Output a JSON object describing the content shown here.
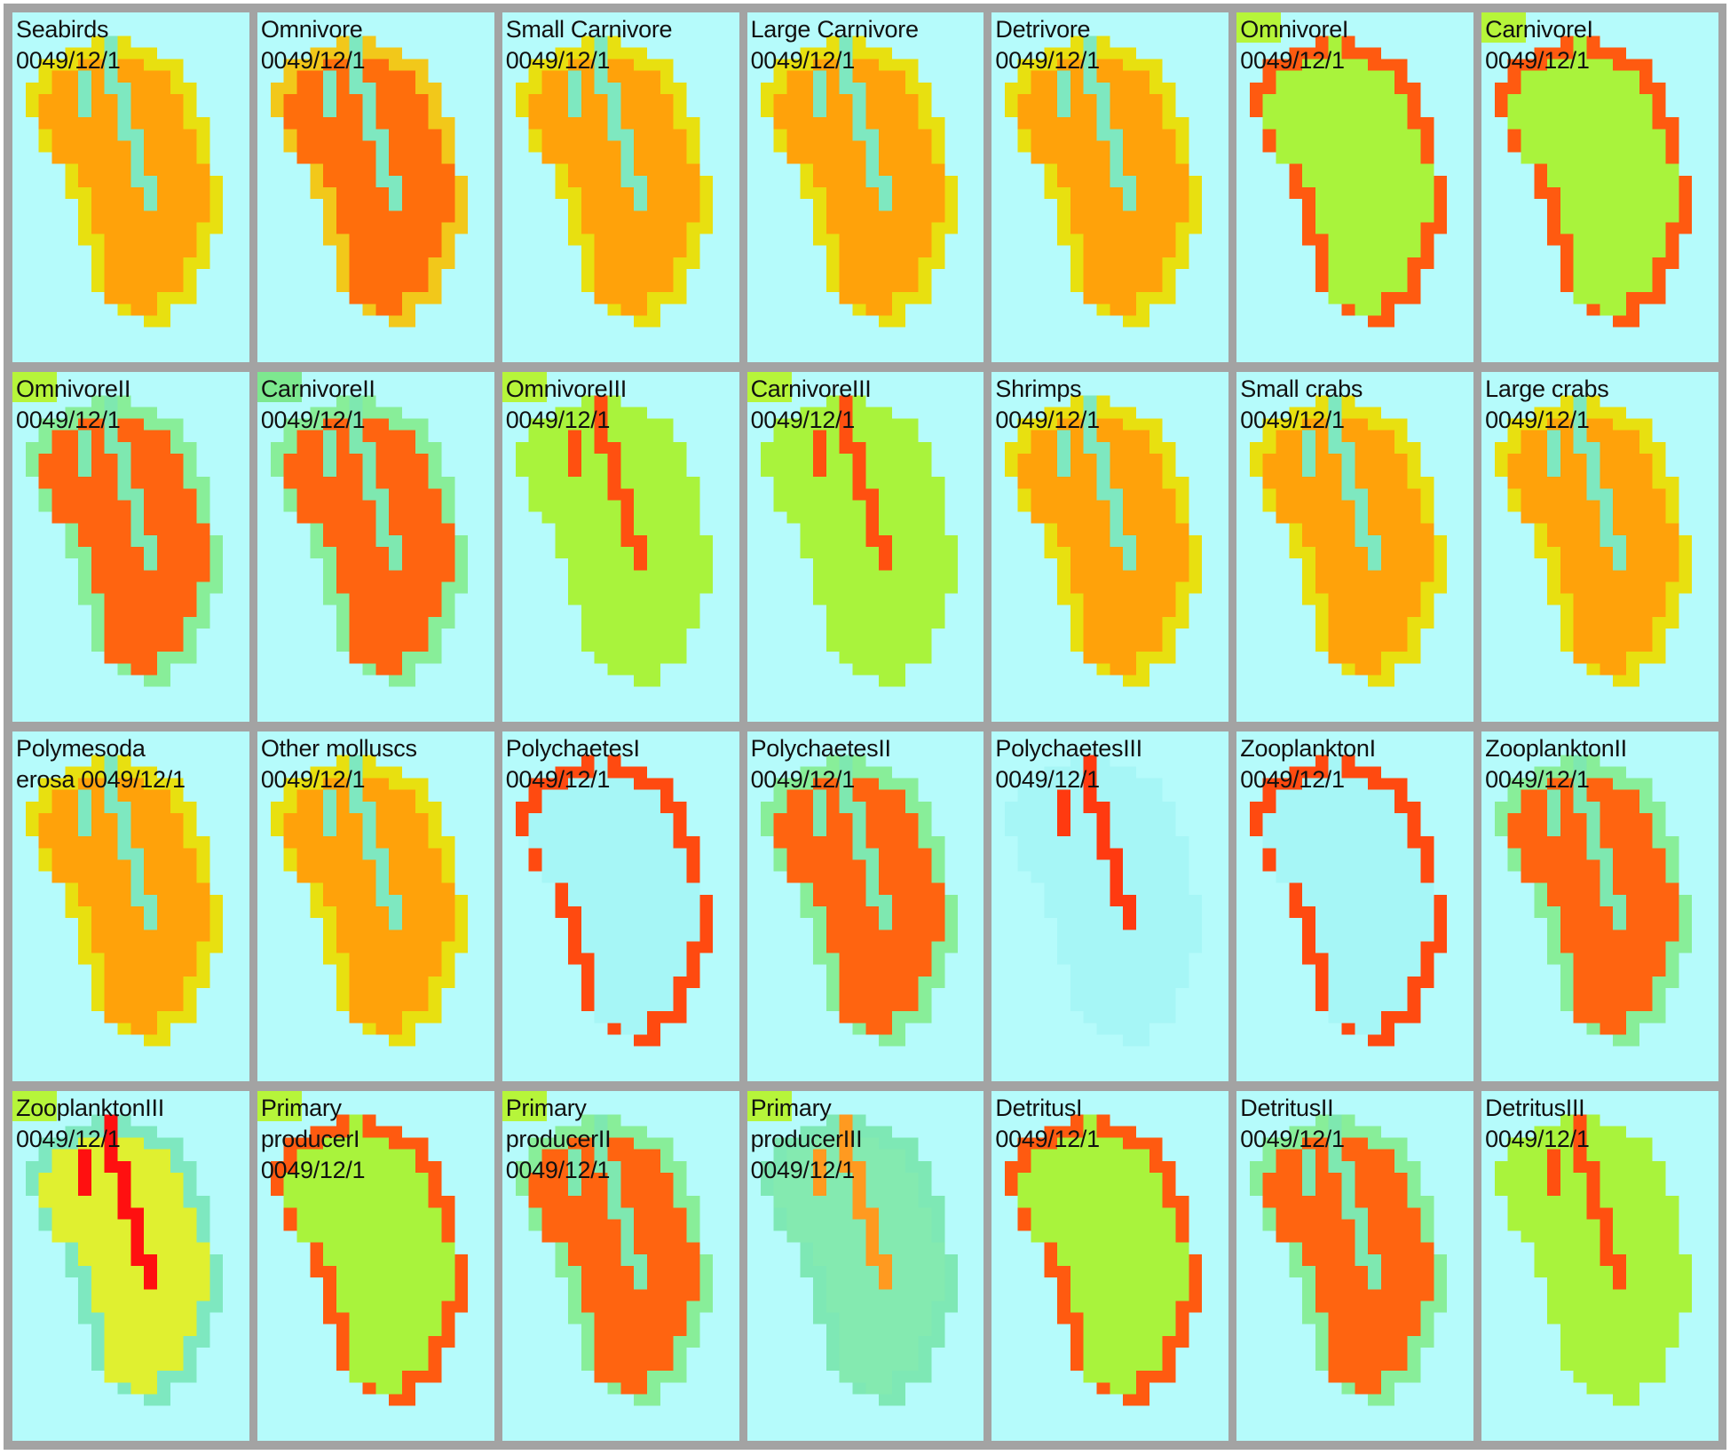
{
  "panels": [
    {
      "name": "Seabirds",
      "date": "0049/12/1",
      "scheme": "orange"
    },
    {
      "name": "Omnivore",
      "date": "0049/12/1",
      "scheme": "dark-orange"
    },
    {
      "name": "Small Carnivore",
      "date": "0049/12/1",
      "scheme": "orange"
    },
    {
      "name": "Large Carnivore",
      "date": "0049/12/1",
      "scheme": "orange"
    },
    {
      "name": "Detrivore",
      "date": "0049/12/1",
      "scheme": "orange"
    },
    {
      "name": "OmnivoreI",
      "date": "0049/12/1",
      "scheme": "green-rim",
      "tag": "#b6f53a"
    },
    {
      "name": "CarnivoreI",
      "date": "0049/12/1",
      "scheme": "green-rim",
      "tag": "#b6f53a"
    },
    {
      "name": "OmnivoreII",
      "date": "0049/12/1",
      "scheme": "red-core",
      "tag": "#b6f53a"
    },
    {
      "name": "CarnivoreII",
      "date": "0049/12/1",
      "scheme": "red-core",
      "tag": "#7de88f"
    },
    {
      "name": "OmnivoreIII",
      "date": "0049/12/1",
      "scheme": "green-channel",
      "tag": "#b6f53a"
    },
    {
      "name": "CarnivoreIII",
      "date": "0049/12/1",
      "scheme": "green-channel",
      "tag": "#b6f53a"
    },
    {
      "name": "Shrimps",
      "date": "0049/12/1",
      "scheme": "orange"
    },
    {
      "name": "Small crabs",
      "date": "0049/12/1",
      "scheme": "orange"
    },
    {
      "name": "Large crabs",
      "date": "0049/12/1",
      "scheme": "orange"
    },
    {
      "name": "Polymesoda",
      "date": "erosa 0049/12/1",
      "scheme": "orange"
    },
    {
      "name": "Other molluscs",
      "date": "0049/12/1",
      "scheme": "orange"
    },
    {
      "name": "PolychaetesI",
      "date": "0049/12/1",
      "scheme": "cyan-rim"
    },
    {
      "name": "PolychaetesII",
      "date": "0049/12/1",
      "scheme": "red-core"
    },
    {
      "name": "PolychaetesIII",
      "date": "0049/12/1",
      "scheme": "cyan-channel"
    },
    {
      "name": "ZooplanktonI",
      "date": "0049/12/1",
      "scheme": "cyan-rim"
    },
    {
      "name": "ZooplanktonII",
      "date": "0049/12/1",
      "scheme": "red-core"
    },
    {
      "name": "ZooplanktonIII",
      "date": "0049/12/1",
      "scheme": "hot-core",
      "tag": "#b6f53a"
    },
    {
      "name": "Primary",
      "date": "producerI\n0049/12/1",
      "scheme": "green-rim",
      "tag": "#b6f53a"
    },
    {
      "name": "Primary",
      "date": "producerII\n0049/12/1",
      "scheme": "red-core",
      "tag": "#b6f53a"
    },
    {
      "name": "Primary",
      "date": "producerIII\n0049/12/1",
      "scheme": "teal-channel",
      "tag": "#b6f53a"
    },
    {
      "name": "DetritusI",
      "date": "0049/12/1",
      "scheme": "green-rim"
    },
    {
      "name": "DetritusII",
      "date": "0049/12/1",
      "scheme": "red-core"
    },
    {
      "name": "DetritusIII",
      "date": "0049/12/1",
      "scheme": "green-channel"
    }
  ],
  "colors": {
    "background": "#b5fbfb",
    "frame": "#a3a3a3",
    "orange": "#ff8c00",
    "dark_orange": "#ff6a0a",
    "amber": "#ffa500",
    "yellow": "#e6e000",
    "lime": "#a8f53a",
    "mint": "#7de8b5",
    "red": "#ff3a0a",
    "cyan_light": "#9ff4f6"
  }
}
